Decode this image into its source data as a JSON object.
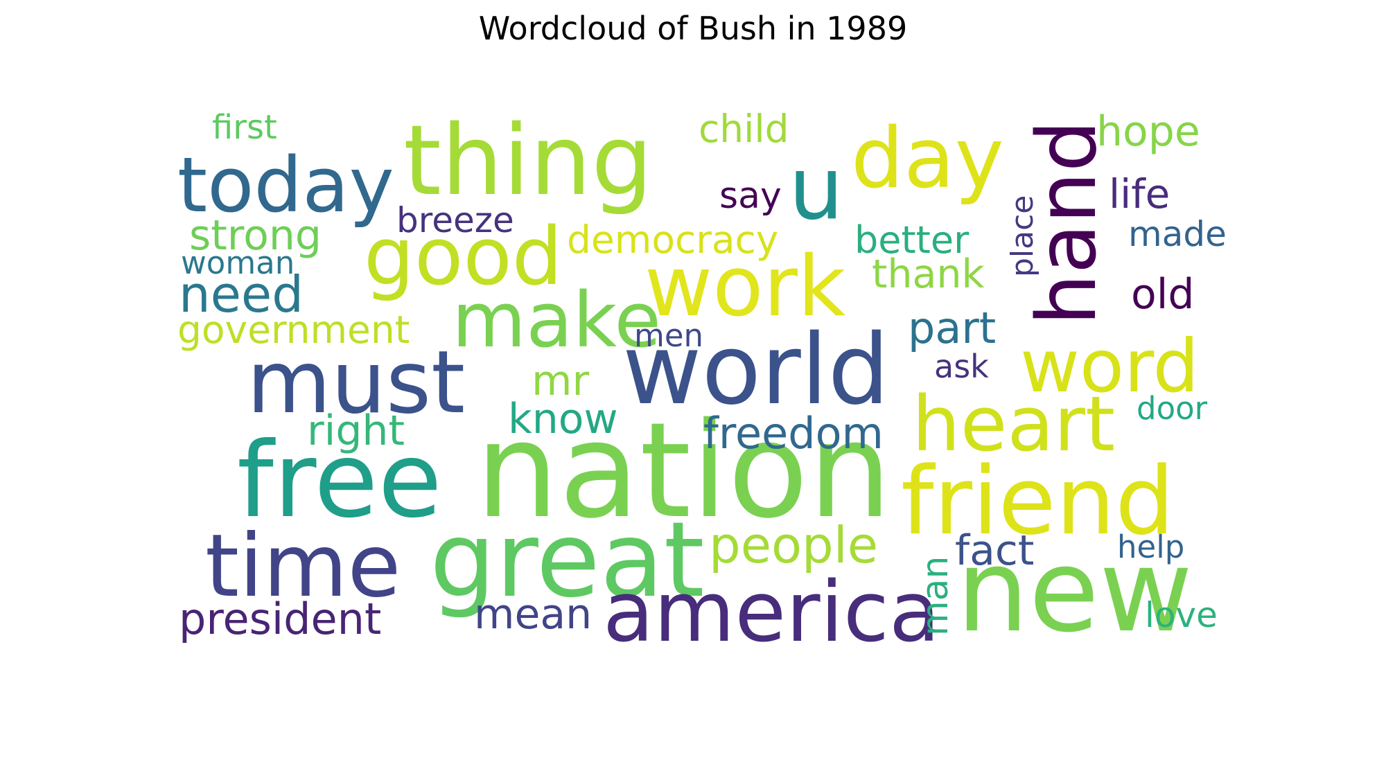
{
  "chart_data": {
    "type": "wordcloud",
    "title": "Wordcloud of Bush in 1989",
    "words": [
      {
        "text": "nation",
        "color": "#7ad151"
      },
      {
        "text": "new",
        "color": "#7ad151"
      },
      {
        "text": "world",
        "color": "#3b528b"
      },
      {
        "text": "great",
        "color": "#5ec962"
      },
      {
        "text": "america",
        "color": "#472d7b"
      },
      {
        "text": "free",
        "color": "#1f9e89"
      },
      {
        "text": "friend",
        "color": "#dde318"
      },
      {
        "text": "thing",
        "color": "#a5db36"
      },
      {
        "text": "time",
        "color": "#414487"
      },
      {
        "text": "must",
        "color": "#3b528b"
      },
      {
        "text": "hand",
        "color": "#440154"
      },
      {
        "text": "work",
        "color": "#e1e51b"
      },
      {
        "text": "good",
        "color": "#c2df23"
      },
      {
        "text": "today",
        "color": "#31688e"
      },
      {
        "text": "day",
        "color": "#dde318"
      },
      {
        "text": "heart",
        "color": "#d0e11c"
      },
      {
        "text": "word",
        "color": "#d8e219"
      },
      {
        "text": "make",
        "color": "#7ad151"
      },
      {
        "text": "u",
        "color": "#21908d"
      },
      {
        "text": "people",
        "color": "#a5db36"
      },
      {
        "text": "president",
        "color": "#482475"
      },
      {
        "text": "freedom",
        "color": "#31688e"
      },
      {
        "text": "mean",
        "color": "#414487"
      },
      {
        "text": "need",
        "color": "#2a788e"
      },
      {
        "text": "know",
        "color": "#22a884"
      },
      {
        "text": "right",
        "color": "#35b779"
      },
      {
        "text": "strong",
        "color": "#6ece58"
      },
      {
        "text": "democracy",
        "color": "#d8e219"
      },
      {
        "text": "government",
        "color": "#bddf26"
      },
      {
        "text": "mr",
        "color": "#90d743"
      },
      {
        "text": "part",
        "color": "#2c728e"
      },
      {
        "text": "fact",
        "color": "#3b528b"
      },
      {
        "text": "man",
        "color": "#2ab07f"
      },
      {
        "text": "old",
        "color": "#440154"
      },
      {
        "text": "life",
        "color": "#472d7b"
      },
      {
        "text": "hope",
        "color": "#86d549"
      },
      {
        "text": "child",
        "color": "#a0da39"
      },
      {
        "text": "thank",
        "color": "#8ed645"
      },
      {
        "text": "better",
        "color": "#29af7f"
      },
      {
        "text": "breeze",
        "color": "#46327e"
      },
      {
        "text": "say",
        "color": "#440154"
      },
      {
        "text": "first",
        "color": "#5ec962"
      },
      {
        "text": "woman",
        "color": "#2a788e"
      },
      {
        "text": "made",
        "color": "#33638d"
      },
      {
        "text": "place",
        "color": "#443983"
      },
      {
        "text": "men",
        "color": "#3e4989"
      },
      {
        "text": "ask",
        "color": "#46327e"
      },
      {
        "text": "door",
        "color": "#22a884"
      },
      {
        "text": "help",
        "color": "#33638d"
      },
      {
        "text": "love",
        "color": "#2db27d"
      }
    ]
  }
}
